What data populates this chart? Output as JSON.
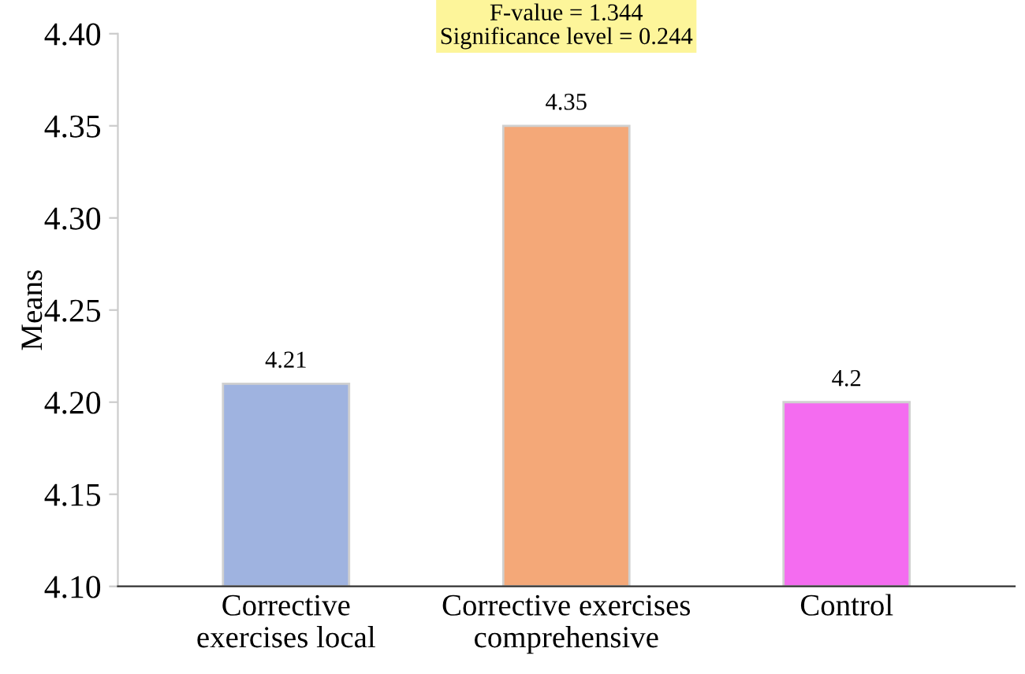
{
  "chart_data": {
    "type": "bar",
    "ylabel": "Means",
    "categories": [
      "Corrective\nexercises local",
      "Corrective exercises\ncomprehensive",
      "Control"
    ],
    "values": [
      4.21,
      4.35,
      4.2
    ],
    "colors": [
      "#9fb3e0",
      "#f4a878",
      "#f46cf0"
    ],
    "ylim": [
      4.1,
      4.4
    ],
    "yticks": [
      {
        "value": 4.1,
        "label": "4.10"
      },
      {
        "value": 4.15,
        "label": "4.15"
      },
      {
        "value": 4.2,
        "label": "4.20"
      },
      {
        "value": 4.25,
        "label": "4.25"
      },
      {
        "value": 4.3,
        "label": "4.30"
      },
      {
        "value": 4.35,
        "label": "4.35"
      },
      {
        "value": 4.4,
        "label": "4.40"
      }
    ],
    "grid": false,
    "data_labels": true,
    "annotations": [
      "F-value = 1.344",
      "Significance level = 0.244"
    ]
  }
}
